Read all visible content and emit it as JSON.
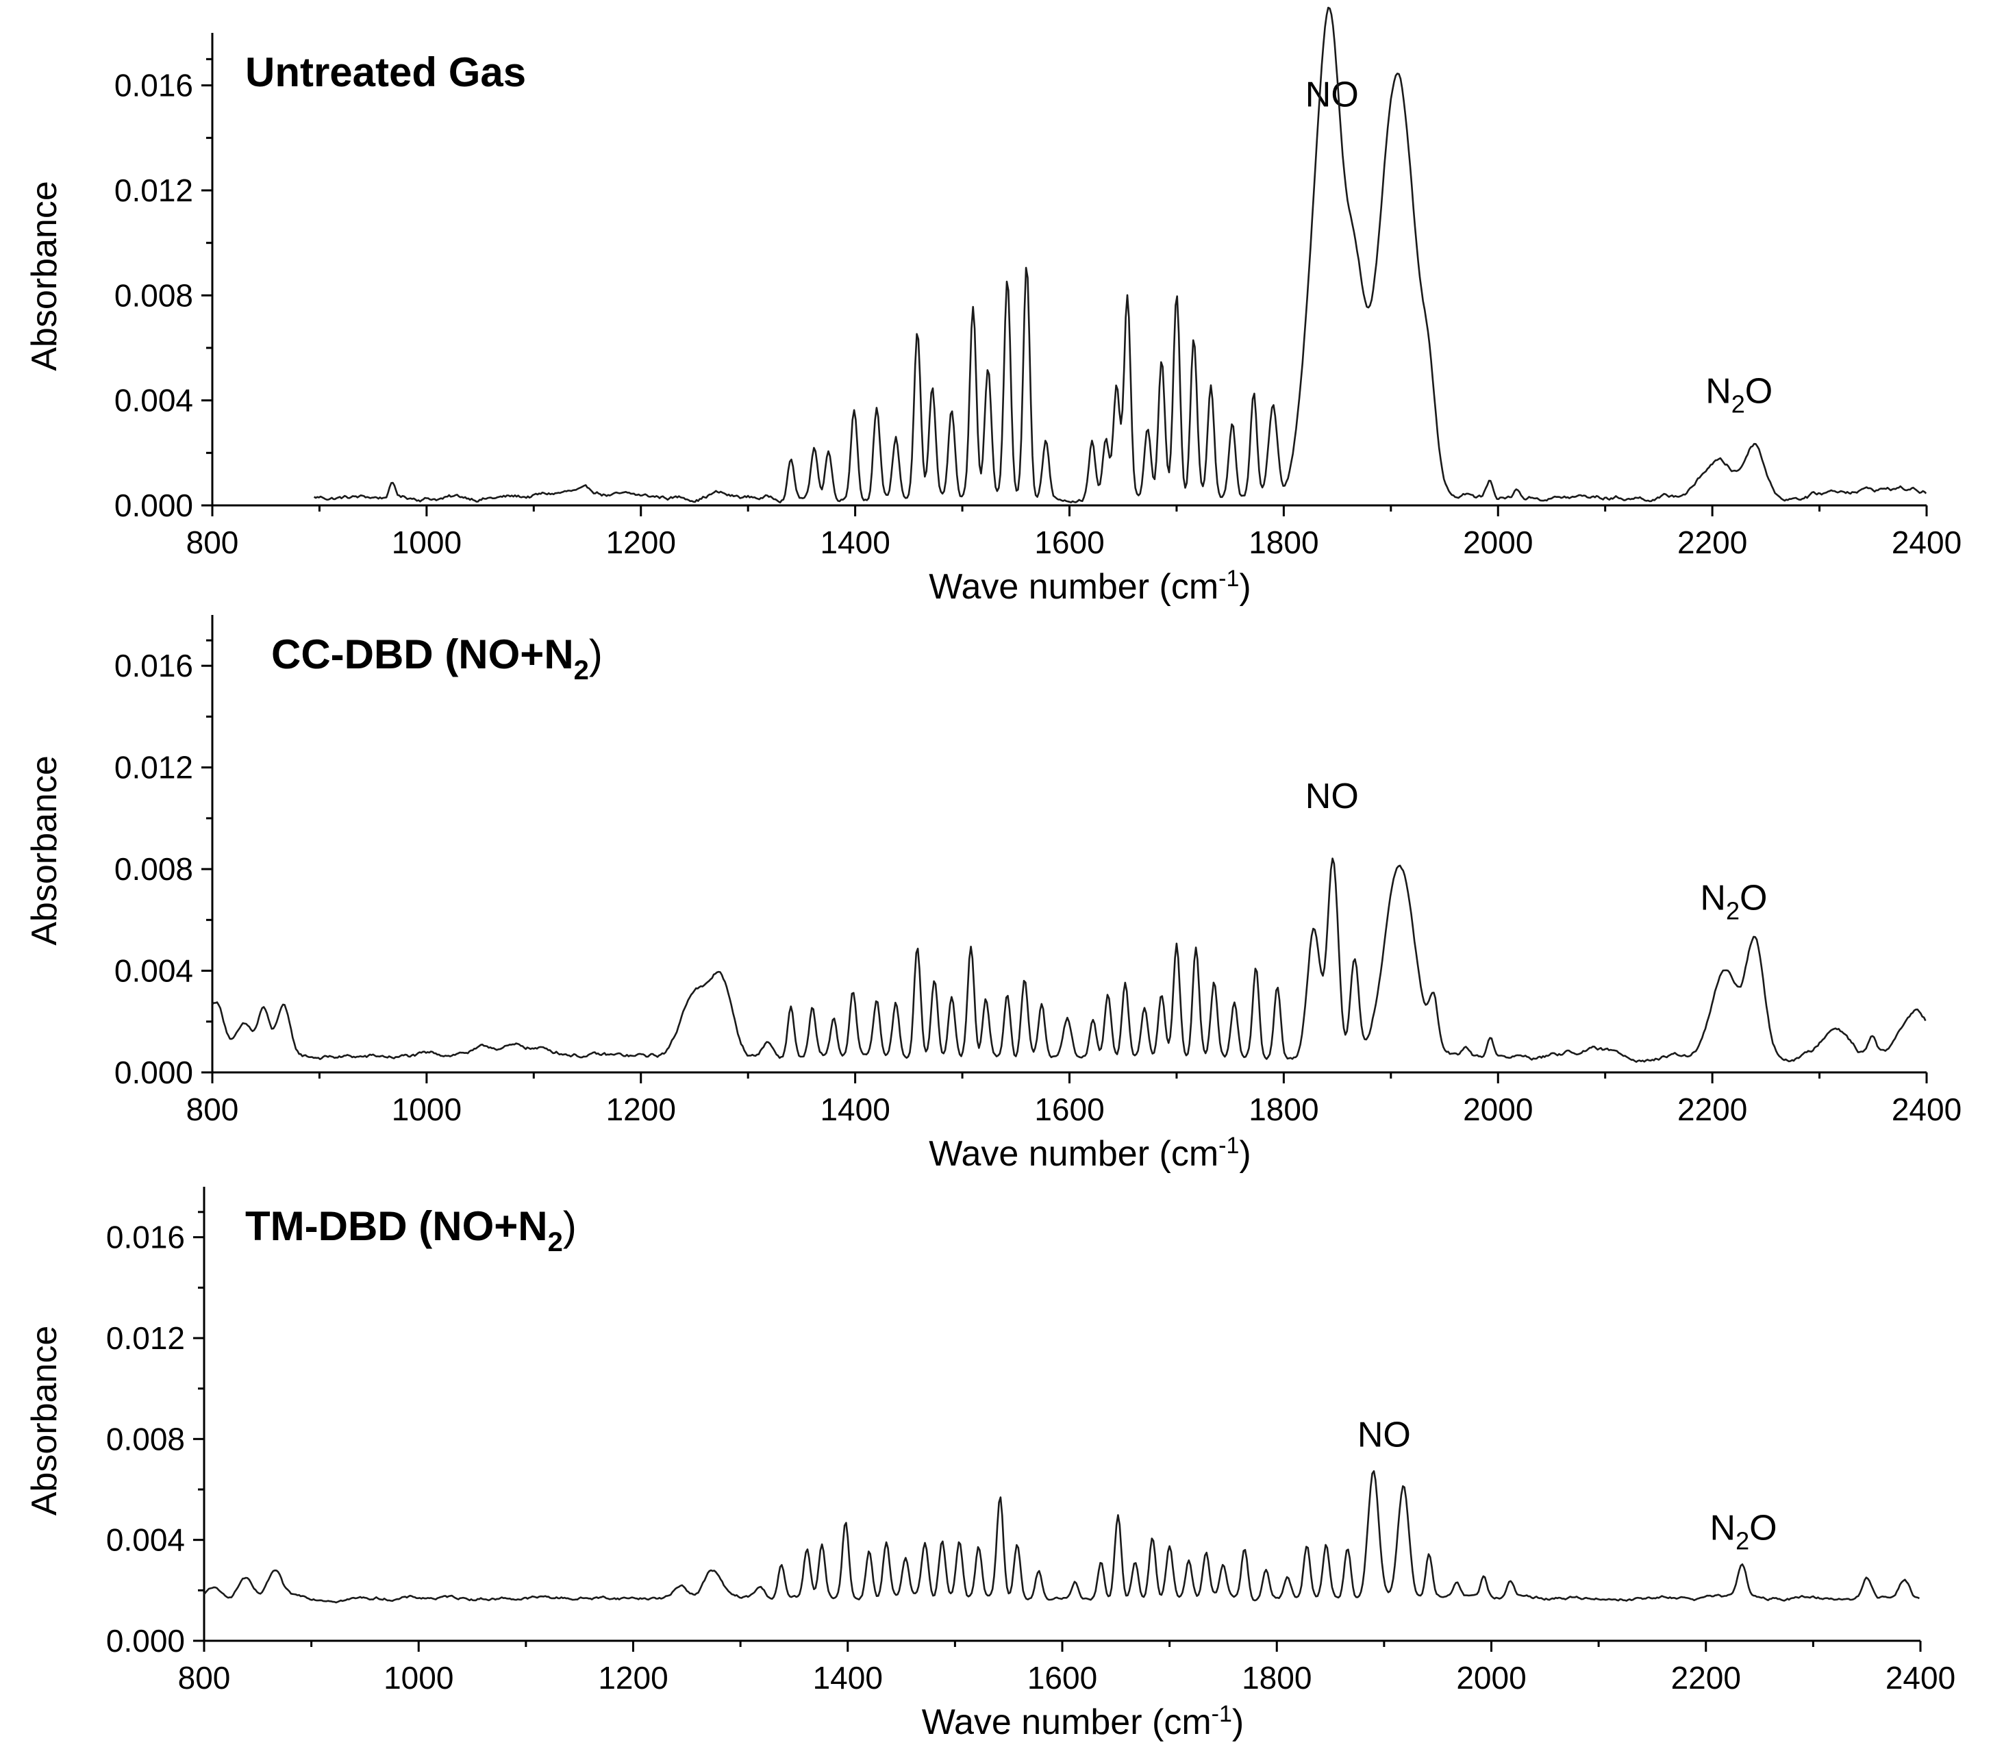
{
  "chart_data": [
    {
      "type": "line",
      "title": "Untreated Gas",
      "xlabel": "Wave number",
      "xlabel_unit": "(cm",
      "xlabel_unit_sup": "-1",
      "xlabel_unit_close": ")",
      "ylabel": "Absorbance",
      "xlim": [
        800,
        2400
      ],
      "ylim": [
        0,
        0.018
      ],
      "x_ticks": [
        800,
        1000,
        1200,
        1400,
        1600,
        1800,
        2000,
        2200,
        2400
      ],
      "x_tick_labels": [
        "800",
        "1000",
        "1200",
        "1400",
        "1600",
        "1800",
        "2000",
        "2200",
        "2400"
      ],
      "y_ticks": [
        0,
        0.004,
        0.008,
        0.012,
        0.016
      ],
      "y_tick_labels": [
        "0.000",
        "0.004",
        "0.008",
        "0.012",
        "0.016"
      ],
      "annotations": [
        {
          "text": "NO",
          "x": 1845,
          "y": 0.0152
        },
        {
          "text": "N2O",
          "text_main": "N",
          "text_sub": "2",
          "text_end": "O",
          "x": 2225,
          "y": 0.0039
        }
      ],
      "series": [
        {
          "name": "Untreated Gas",
          "x_start": 895,
          "baseline": 0.0003,
          "noise": 0.0002,
          "peaks": [
            [
              968,
              0.0005,
              3
            ],
            [
              1140,
              0.0002,
              25
            ],
            [
              1270,
              0.0002,
              8
            ],
            [
              1340,
              0.0015,
              3
            ],
            [
              1362,
              0.0019,
              3
            ],
            [
              1375,
              0.0018,
              3
            ],
            [
              1399,
              0.0035,
              3
            ],
            [
              1420,
              0.0035,
              3
            ],
            [
              1438,
              0.0023,
              3
            ],
            [
              1458,
              0.0063,
              3
            ],
            [
              1472,
              0.0041,
              3
            ],
            [
              1490,
              0.0034,
              3
            ],
            [
              1510,
              0.0072,
              3
            ],
            [
              1524,
              0.0048,
              3
            ],
            [
              1542,
              0.0083,
              3
            ],
            [
              1560,
              0.009,
              3
            ],
            [
              1578,
              0.0022,
              3
            ],
            [
              1621,
              0.0022,
              3
            ],
            [
              1634,
              0.0021,
              3
            ],
            [
              1644,
              0.0042,
              3
            ],
            [
              1654,
              0.0076,
              3
            ],
            [
              1673,
              0.0026,
              3
            ],
            [
              1686,
              0.0052,
              3
            ],
            [
              1700,
              0.0077,
              3
            ],
            [
              1716,
              0.006,
              3
            ],
            [
              1732,
              0.0043,
              3
            ],
            [
              1752,
              0.0028,
              3
            ],
            [
              1772,
              0.0039,
              3
            ],
            [
              1790,
              0.0035,
              4
            ],
            [
              1830,
              0.0085,
              12
            ],
            [
              1845,
              0.0138,
              10
            ],
            [
              1866,
              0.0075,
              9
            ],
            [
              1906,
              0.016,
              17
            ],
            [
              1936,
              0.0025,
              6
            ],
            [
              1970,
              0.0002,
              4
            ],
            [
              1992,
              0.0006,
              3
            ],
            [
              2018,
              0.0003,
              3
            ],
            [
              2205,
              0.0014,
              15
            ],
            [
              2240,
              0.002,
              9
            ],
            [
              2330,
              0.0003,
              25
            ],
            [
              2380,
              0.0003,
              20
            ]
          ]
        }
      ]
    },
    {
      "type": "line",
      "title": "CC-DBD",
      "title_paren": "(NO+N",
      "title_sub": "2",
      "title_close": ")",
      "xlabel": "Wave number",
      "xlabel_unit": "(cm",
      "xlabel_unit_sup": "-1",
      "xlabel_unit_close": ")",
      "ylabel": "Absorbance",
      "xlim": [
        800,
        2400
      ],
      "ylim": [
        0,
        0.018
      ],
      "x_ticks": [
        800,
        1000,
        1200,
        1400,
        1600,
        1800,
        2000,
        2200,
        2400
      ],
      "x_tick_labels": [
        "800",
        "1000",
        "1200",
        "1400",
        "1600",
        "1800",
        "2000",
        "2200",
        "2400"
      ],
      "y_ticks": [
        0,
        0.004,
        0.008,
        0.012,
        0.016
      ],
      "y_tick_labels": [
        "0.000",
        "0.004",
        "0.008",
        "0.012",
        "0.016"
      ],
      "annotations": [
        {
          "text": "NO",
          "x": 1845,
          "y": 0.0104
        },
        {
          "text": "N2O",
          "text_main": "N",
          "text_sub": "2",
          "text_end": "O",
          "x": 2220,
          "y": 0.0064
        }
      ],
      "series": [
        {
          "name": "CC-DBD (NO+N2)",
          "x_start": 800,
          "baseline": 0.0006,
          "noise": 0.0002,
          "peaks": [
            [
              803,
              0.0022,
              8
            ],
            [
              830,
              0.0012,
              8
            ],
            [
              848,
              0.0018,
              5
            ],
            [
              866,
              0.002,
              6
            ],
            [
              1080,
              0.0004,
              40
            ],
            [
              1250,
              0.0026,
              12
            ],
            [
              1275,
              0.003,
              10
            ],
            [
              1318,
              0.0006,
              5
            ],
            [
              1340,
              0.002,
              3
            ],
            [
              1360,
              0.0019,
              3
            ],
            [
              1380,
              0.0015,
              3
            ],
            [
              1398,
              0.0025,
              3
            ],
            [
              1420,
              0.0021,
              3
            ],
            [
              1438,
              0.0021,
              3
            ],
            [
              1458,
              0.0043,
              3
            ],
            [
              1474,
              0.003,
              3
            ],
            [
              1490,
              0.0025,
              3
            ],
            [
              1508,
              0.0044,
              3
            ],
            [
              1522,
              0.0024,
              3
            ],
            [
              1542,
              0.0025,
              3
            ],
            [
              1558,
              0.003,
              3
            ],
            [
              1574,
              0.0021,
              3
            ],
            [
              1598,
              0.0016,
              4
            ],
            [
              1622,
              0.0016,
              3
            ],
            [
              1636,
              0.0024,
              3
            ],
            [
              1652,
              0.003,
              3
            ],
            [
              1670,
              0.002,
              3
            ],
            [
              1686,
              0.0024,
              3
            ],
            [
              1700,
              0.0044,
              3
            ],
            [
              1718,
              0.0042,
              3
            ],
            [
              1735,
              0.003,
              3
            ],
            [
              1754,
              0.0022,
              3
            ],
            [
              1774,
              0.0036,
              3
            ],
            [
              1794,
              0.0028,
              3
            ],
            [
              1828,
              0.0052,
              6
            ],
            [
              1846,
              0.0078,
              5
            ],
            [
              1866,
              0.004,
              4
            ],
            [
              1908,
              0.0076,
              14
            ],
            [
              1940,
              0.002,
              4
            ],
            [
              1970,
              0.0004,
              3
            ],
            [
              1993,
              0.0008,
              3
            ],
            [
              2085,
              0.0003,
              20
            ],
            [
              2212,
              0.0034,
              12
            ],
            [
              2240,
              0.0045,
              8
            ],
            [
              2315,
              0.0013,
              12
            ],
            [
              2350,
              0.0008,
              4
            ],
            [
              2390,
              0.0018,
              14
            ]
          ]
        }
      ]
    },
    {
      "type": "line",
      "title": "TM-DBD",
      "title_paren": "(NO+N",
      "title_sub": "2",
      "title_close": ")",
      "xlabel": "Wave number",
      "xlabel_unit": "(cm",
      "xlabel_unit_sup": "-1",
      "xlabel_unit_close": ")",
      "ylabel": "Absorbance",
      "xlim": [
        800,
        2400
      ],
      "ylim": [
        0,
        0.018
      ],
      "x_ticks": [
        800,
        1000,
        1200,
        1400,
        1600,
        1800,
        2000,
        2200,
        2400
      ],
      "x_tick_labels": [
        "800",
        "1000",
        "1200",
        "1400",
        "1600",
        "1800",
        "2000",
        "2200",
        "2400"
      ],
      "y_ticks": [
        0,
        0.004,
        0.008,
        0.012,
        0.016
      ],
      "y_tick_labels": [
        "0.000",
        "0.004",
        "0.008",
        "0.012",
        "0.016"
      ],
      "annotations": [
        {
          "text": "NO",
          "x": 1900,
          "y": 0.0077
        },
        {
          "text": "N2O",
          "text_main": "N",
          "text_sub": "2",
          "text_end": "O",
          "x": 2235,
          "y": 0.004
        }
      ],
      "series": [
        {
          "name": "TM-DBD (NO+N2)",
          "x_start": 800,
          "baseline": 0.0017,
          "noise": 0.00015,
          "peaks": [
            [
              808,
              0.0004,
              5
            ],
            [
              838,
              0.0008,
              6
            ],
            [
              866,
              0.001,
              6
            ],
            [
              1245,
              0.0005,
              6
            ],
            [
              1274,
              0.0011,
              8
            ],
            [
              1318,
              0.0004,
              4
            ],
            [
              1338,
              0.0013,
              3
            ],
            [
              1362,
              0.0019,
              3
            ],
            [
              1376,
              0.002,
              3
            ],
            [
              1398,
              0.0031,
              3
            ],
            [
              1420,
              0.0019,
              3
            ],
            [
              1436,
              0.0022,
              3
            ],
            [
              1454,
              0.0015,
              3
            ],
            [
              1472,
              0.0021,
              3
            ],
            [
              1488,
              0.0023,
              3
            ],
            [
              1504,
              0.0023,
              3
            ],
            [
              1522,
              0.002,
              3
            ],
            [
              1542,
              0.004,
              3
            ],
            [
              1558,
              0.0022,
              3
            ],
            [
              1578,
              0.0011,
              3
            ],
            [
              1612,
              0.0006,
              3
            ],
            [
              1636,
              0.0015,
              3
            ],
            [
              1652,
              0.0033,
              3
            ],
            [
              1668,
              0.0015,
              3
            ],
            [
              1684,
              0.0024,
              3
            ],
            [
              1700,
              0.002,
              3
            ],
            [
              1718,
              0.0015,
              3
            ],
            [
              1734,
              0.0018,
              3
            ],
            [
              1750,
              0.0013,
              3
            ],
            [
              1770,
              0.002,
              3
            ],
            [
              1790,
              0.0011,
              3
            ],
            [
              1810,
              0.0008,
              3
            ],
            [
              1828,
              0.0021,
              3
            ],
            [
              1846,
              0.0021,
              3
            ],
            [
              1866,
              0.002,
              3
            ],
            [
              1890,
              0.005,
              5
            ],
            [
              1918,
              0.0044,
              5
            ],
            [
              1942,
              0.0017,
              3
            ],
            [
              1968,
              0.0005,
              3
            ],
            [
              1993,
              0.0008,
              3
            ],
            [
              2018,
              0.0006,
              3
            ],
            [
              2234,
              0.0013,
              4
            ],
            [
              2350,
              0.0008,
              4
            ],
            [
              2385,
              0.0008,
              5
            ]
          ]
        }
      ]
    }
  ]
}
